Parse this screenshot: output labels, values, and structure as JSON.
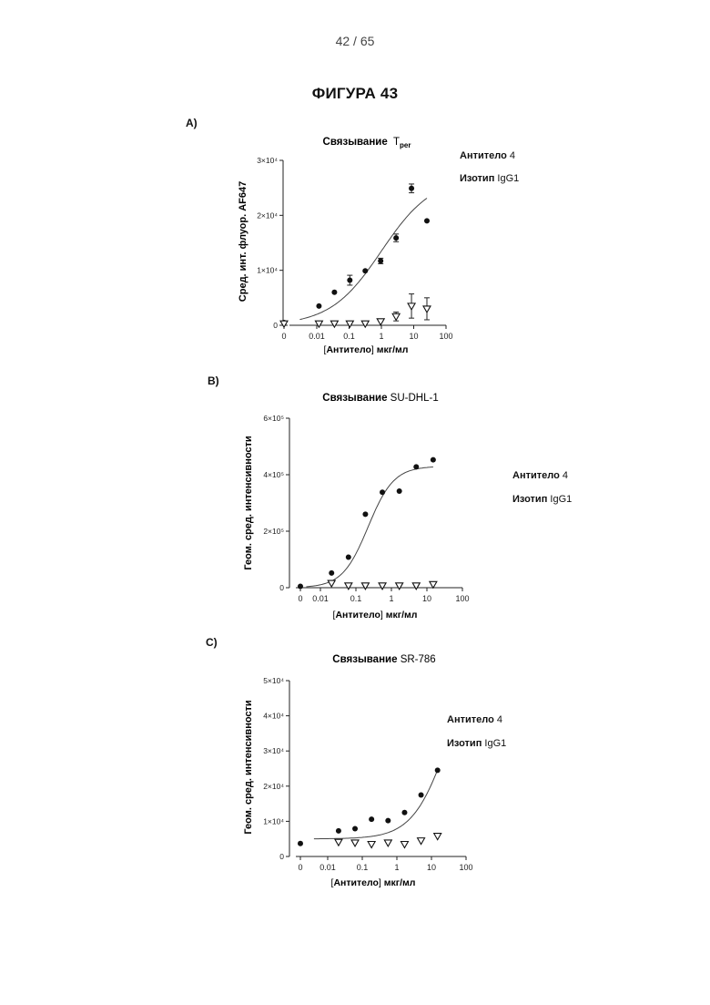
{
  "page": {
    "number": "42 / 65"
  },
  "figure": {
    "title": "ФИГУРА 43"
  },
  "panels": [
    {
      "label": "A)",
      "title_bold": "Связывание",
      "title_regular": "T",
      "title_sub": "per",
      "ylabel": "Сред. инт. флуор. AF647",
      "xlabel_bracket_open": "[",
      "xlabel_bold": "Антитело",
      "xlabel_bracket_close": "]",
      "xlabel_units": " мкг/мл",
      "legend": [
        {
          "bold": "Антитело",
          "regular": " 4"
        },
        {
          "bold": "Изотип",
          "regular": " IgG1"
        }
      ]
    },
    {
      "label": "B)",
      "title_bold": "Связывание",
      "title_regular": " SU-DHL-1",
      "title_sub": "",
      "ylabel": "Геом. сред. интенсивности",
      "xlabel_bracket_open": "[",
      "xlabel_bold": "Антитело",
      "xlabel_bracket_close": "]",
      "xlabel_units": " мкг/мл",
      "legend": [
        {
          "bold": "Антитело",
          "regular": " 4"
        },
        {
          "bold": "Изотип",
          "regular": " IgG1"
        }
      ]
    },
    {
      "label": "C)",
      "title_bold": "Связывание",
      "title_regular": " SR-786",
      "title_sub": "",
      "ylabel": "Геом. сред. интенсивности",
      "xlabel_bracket_open": "[",
      "xlabel_bold": "Антитело",
      "xlabel_bracket_close": "]",
      "xlabel_units": " мкг/мл",
      "legend": [
        {
          "bold": "Антитело",
          "regular": " 4"
        },
        {
          "bold": "Изотип",
          "regular": " IgG1"
        }
      ]
    }
  ],
  "chart_data": [
    {
      "type": "scatter",
      "xscale": "log",
      "xlim": [
        0.003,
        100
      ],
      "ylim": [
        0,
        30000
      ],
      "yticks": [
        0,
        10000,
        20000,
        30000
      ],
      "ytick_labels": [
        "0",
        "1×10⁴",
        "2×10⁴",
        "3×10⁴"
      ],
      "xticks": [
        0.01,
        0.1,
        1,
        10,
        100
      ],
      "xtick_labels": [
        "0.01",
        "0.1",
        "1",
        "10",
        "100"
      ],
      "zero_label": "0",
      "series": [
        {
          "name": "Антитело 4",
          "marker": "circle",
          "x": [
            0,
            0.0117,
            0.0352,
            0.1055,
            0.316,
            0.949,
            2.85,
            8.54,
            25.6
          ],
          "y": [
            500,
            3500,
            6000,
            8200,
            9900,
            11700,
            15900,
            24900,
            19000
          ],
          "err": [
            0,
            0,
            0,
            900,
            0,
            500,
            700,
            800,
            0
          ]
        },
        {
          "name": "Изотип IgG1",
          "marker": "triangle-down",
          "x": [
            0,
            0.0117,
            0.0352,
            0.1055,
            0.316,
            0.949,
            2.85,
            8.54,
            25.6
          ],
          "y": [
            300,
            300,
            300,
            300,
            300,
            700,
            1600,
            3500,
            3000
          ],
          "err": [
            0,
            0,
            0,
            0,
            0,
            0,
            800,
            2200,
            2000
          ]
        }
      ],
      "fit": {
        "type": "sigmoid",
        "bottom": 0,
        "top": 27000,
        "ec50": 1.0,
        "hill": 0.55,
        "xrange": [
          0.003,
          25.6
        ]
      }
    },
    {
      "type": "scatter",
      "xscale": "log",
      "xlim": [
        0.004,
        100
      ],
      "ylim": [
        0,
        600000
      ],
      "yticks": [
        0,
        200000,
        400000,
        600000
      ],
      "ytick_labels": [
        "0",
        "2×10⁵",
        "4×10⁵",
        "6×10⁵"
      ],
      "xticks": [
        0.01,
        0.1,
        1,
        10,
        100
      ],
      "xtick_labels": [
        "0.01",
        "0.1",
        "1",
        "10",
        "100"
      ],
      "zero_label": "0",
      "series": [
        {
          "name": "Антитело 4",
          "marker": "circle",
          "x": [
            0,
            0.0206,
            0.0617,
            0.185,
            0.556,
            1.67,
            5.0,
            15.0
          ],
          "y": [
            5000,
            52000,
            108000,
            260000,
            338000,
            342000,
            428000,
            453000
          ]
        },
        {
          "name": "Изотип IgG1",
          "marker": "triangle-down",
          "x": [
            0.0206,
            0.0617,
            0.185,
            0.556,
            1.67,
            5.0,
            15.0
          ],
          "y": [
            16000,
            7000,
            7000,
            7000,
            7000,
            7000,
            12000
          ]
        }
      ],
      "fit": {
        "type": "sigmoid",
        "bottom": 0,
        "top": 430000,
        "ec50": 0.22,
        "hill": 1.2,
        "xrange": [
          0.004,
          15
        ]
      }
    },
    {
      "type": "scatter",
      "xscale": "log",
      "xlim": [
        0.004,
        100
      ],
      "ylim": [
        0,
        50000
      ],
      "yticks": [
        0,
        10000,
        20000,
        30000,
        40000,
        50000
      ],
      "ytick_labels": [
        "0",
        "1×10⁴",
        "2×10⁴",
        "3×10⁴",
        "4×10⁴",
        "5×10⁴"
      ],
      "xticks": [
        0.01,
        0.1,
        1,
        10,
        100
      ],
      "xtick_labels": [
        "0.01",
        "0.1",
        "1",
        "10",
        "100"
      ],
      "zero_label": "0",
      "series": [
        {
          "name": "Антитело 4",
          "marker": "circle",
          "x": [
            0,
            0.0206,
            0.0617,
            0.185,
            0.556,
            1.67,
            5.0,
            15.0
          ],
          "y": [
            3700,
            7300,
            7900,
            10600,
            10200,
            12500,
            17500,
            24500
          ]
        },
        {
          "name": "Изотип IgG1",
          "marker": "triangle-down",
          "x": [
            0.0206,
            0.0617,
            0.185,
            0.556,
            1.67,
            5.0,
            15.0
          ],
          "y": [
            4100,
            3900,
            3500,
            3900,
            3500,
            4500,
            5800
          ]
        }
      ],
      "fit": {
        "type": "sigmoid",
        "bottom": 5000,
        "top": 60000,
        "ec50": 30,
        "hill": 0.85,
        "xrange": [
          0.004,
          15
        ]
      }
    }
  ]
}
